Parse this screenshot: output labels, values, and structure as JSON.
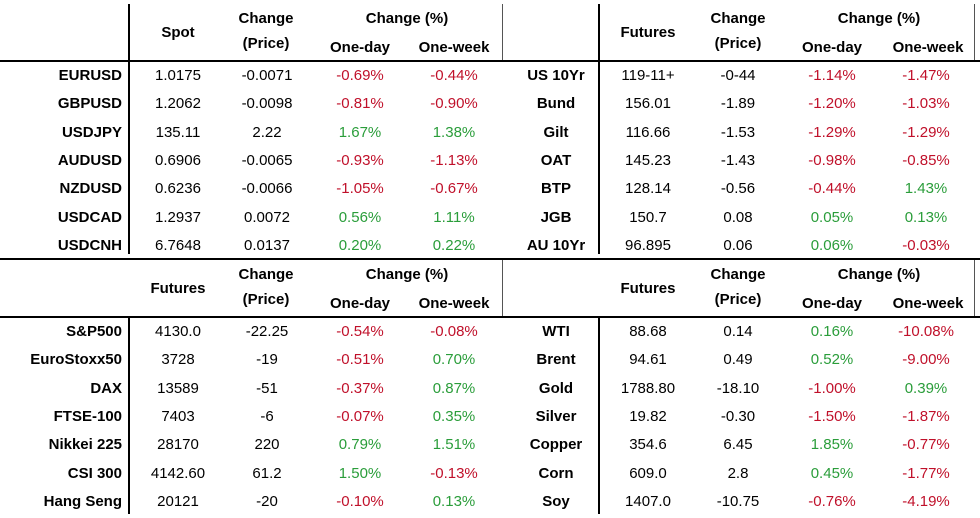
{
  "top_header": {
    "left": {
      "col1": "Spot",
      "col2_line1": "Change",
      "col2_line2": "(Price)",
      "col3_line1": "Change (%)",
      "col3a": "One-day",
      "col3b": "One-week"
    },
    "right": {
      "col1": "Futures",
      "col2_line1": "Change",
      "col2_line2": "(Price)",
      "col3_line1": "Change (%)",
      "col3a": "One-day",
      "col3b": "One-week"
    }
  },
  "bottom_header": {
    "left": {
      "col1": "Futures",
      "col2_line1": "Change",
      "col2_line2": "(Price)",
      "col3_line1": "Change (%)",
      "col3a": "One-day",
      "col3b": "One-week"
    },
    "right": {
      "col1": "Futures",
      "col2_line1": "Change",
      "col2_line2": "(Price)",
      "col3_line1": "Change (%)",
      "col3a": "One-day",
      "col3b": "One-week"
    }
  },
  "fx": [
    {
      "name": "EURUSD",
      "price": "1.0175",
      "change": "-0.0071",
      "day": "-0.69%",
      "week": "-0.44%"
    },
    {
      "name": "GBPUSD",
      "price": "1.2062",
      "change": "-0.0098",
      "day": "-0.81%",
      "week": "-0.90%"
    },
    {
      "name": "USDJPY",
      "price": "135.11",
      "change": "2.22",
      "day": "1.67%",
      "week": "1.38%"
    },
    {
      "name": "AUDUSD",
      "price": "0.6906",
      "change": "-0.0065",
      "day": "-0.93%",
      "week": "-1.13%"
    },
    {
      "name": "NZDUSD",
      "price": "0.6236",
      "change": "-0.0066",
      "day": "-1.05%",
      "week": "-0.67%"
    },
    {
      "name": "USDCAD",
      "price": "1.2937",
      "change": "0.0072",
      "day": "0.56%",
      "week": "1.11%"
    },
    {
      "name": "USDCNH",
      "price": "6.7648",
      "change": "0.0137",
      "day": "0.20%",
      "week": "0.22%"
    }
  ],
  "bonds": [
    {
      "name": "US 10Yr",
      "price": "119-11+",
      "change": "-0-44",
      "day": "-1.14%",
      "week": "-1.47%"
    },
    {
      "name": "Bund",
      "price": "156.01",
      "change": "-1.89",
      "day": "-1.20%",
      "week": "-1.03%"
    },
    {
      "name": "Gilt",
      "price": "116.66",
      "change": "-1.53",
      "day": "-1.29%",
      "week": "-1.29%"
    },
    {
      "name": "OAT",
      "price": "145.23",
      "change": "-1.43",
      "day": "-0.98%",
      "week": "-0.85%"
    },
    {
      "name": "BTP",
      "price": "128.14",
      "change": "-0.56",
      "day": "-0.44%",
      "week": "1.43%"
    },
    {
      "name": "JGB",
      "price": "150.7",
      "change": "0.08",
      "day": "0.05%",
      "week": "0.13%"
    },
    {
      "name": "AU 10Yr",
      "price": "96.895",
      "change": "0.06",
      "day": "0.06%",
      "week": "-0.03%"
    }
  ],
  "equities": [
    {
      "name": "S&P500",
      "price": "4130.0",
      "change": "-22.25",
      "day": "-0.54%",
      "week": "-0.08%"
    },
    {
      "name": "EuroStoxx50",
      "price": "3728",
      "change": "-19",
      "day": "-0.51%",
      "week": "0.70%"
    },
    {
      "name": "DAX",
      "price": "13589",
      "change": "-51",
      "day": "-0.37%",
      "week": "0.87%"
    },
    {
      "name": "FTSE-100",
      "price": "7403",
      "change": "-6",
      "day": "-0.07%",
      "week": "0.35%"
    },
    {
      "name": "Nikkei 225",
      "price": "28170",
      "change": "220",
      "day": "0.79%",
      "week": "1.51%"
    },
    {
      "name": "CSI 300",
      "price": "4142.60",
      "change": "61.2",
      "day": "1.50%",
      "week": "-0.13%"
    },
    {
      "name": "Hang Seng",
      "price": "20121",
      "change": "-20",
      "day": "-0.10%",
      "week": "0.13%"
    }
  ],
  "commodities": [
    {
      "name": "WTI",
      "price": "88.68",
      "change": "0.14",
      "day": "0.16%",
      "week": "-10.08%"
    },
    {
      "name": "Brent",
      "price": "94.61",
      "change": "0.49",
      "day": "0.52%",
      "week": "-9.00%"
    },
    {
      "name": "Gold",
      "price": "1788.80",
      "change": "-18.10",
      "day": "-1.00%",
      "week": "0.39%"
    },
    {
      "name": "Silver",
      "price": "19.82",
      "change": "-0.30",
      "day": "-1.50%",
      "week": "-1.87%"
    },
    {
      "name": "Copper",
      "price": "354.6",
      "change": "6.45",
      "day": "1.85%",
      "week": "-0.77%"
    },
    {
      "name": "Corn",
      "price": "609.0",
      "change": "2.8",
      "day": "0.45%",
      "week": "-1.77%"
    },
    {
      "name": "Soy",
      "price": "1407.0",
      "change": "-10.75",
      "day": "-0.76%",
      "week": "-4.19%"
    }
  ],
  "colors": {
    "positive": "#2a9d3a",
    "negative": "#c0102a"
  }
}
